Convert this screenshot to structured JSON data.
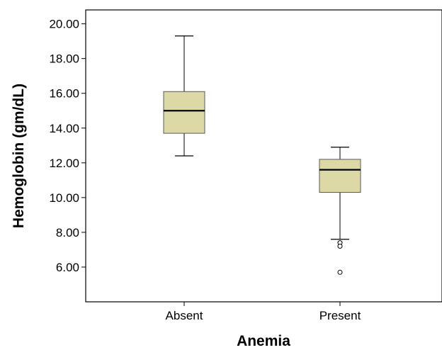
{
  "chart_data": {
    "type": "boxplot",
    "title": "",
    "xlabel": "Anemia",
    "ylabel": "Hemoglobin (gm/dL)",
    "ylim": [
      4.0,
      20.8
    ],
    "yticks": [
      6.0,
      8.0,
      10.0,
      12.0,
      14.0,
      16.0,
      18.0,
      20.0
    ],
    "ytick_labels": [
      "6.00",
      "8.00",
      "10.00",
      "12.00",
      "14.00",
      "16.00",
      "18.00",
      "20.00"
    ],
    "categories": [
      "Absent",
      "Present"
    ],
    "boxes": [
      {
        "category": "Absent",
        "min": 12.4,
        "q1": 13.7,
        "median": 15.0,
        "q3": 16.1,
        "max": 19.3,
        "outliers": []
      },
      {
        "category": "Present",
        "min": 7.6,
        "q1": 10.3,
        "median": 11.6,
        "q3": 12.2,
        "max": 12.9,
        "outliers": [
          7.4,
          7.2,
          5.7
        ]
      }
    ],
    "grid": false,
    "colors": {
      "box_fill": "#ddd9a6",
      "box_stroke": "#5a5a5a",
      "median": "#000000",
      "axis": "#000000"
    }
  }
}
